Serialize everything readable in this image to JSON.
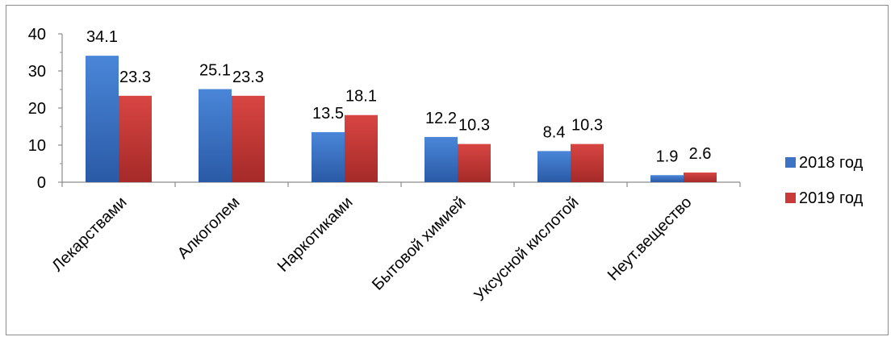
{
  "chart_data": {
    "type": "bar",
    "title": "",
    "xlabel": "",
    "ylabel": "",
    "ylim": [
      0,
      40
    ],
    "yticks": [
      0,
      10,
      20,
      30,
      40
    ],
    "grid": false,
    "legend_position": "right",
    "categories": [
      "Лекарствами",
      "Алкоголем",
      "Наркотиками",
      "Бытовой химией",
      "Уксусной кислотой",
      "Неут.вещество"
    ],
    "series": [
      {
        "name": "2018 год",
        "color": "#3d72c4",
        "values": [
          34.1,
          25.1,
          13.5,
          12.2,
          8.4,
          1.9
        ]
      },
      {
        "name": "2019 год",
        "color": "#c93a38",
        "values": [
          23.3,
          23.3,
          18.1,
          10.3,
          10.3,
          2.6
        ]
      }
    ]
  }
}
